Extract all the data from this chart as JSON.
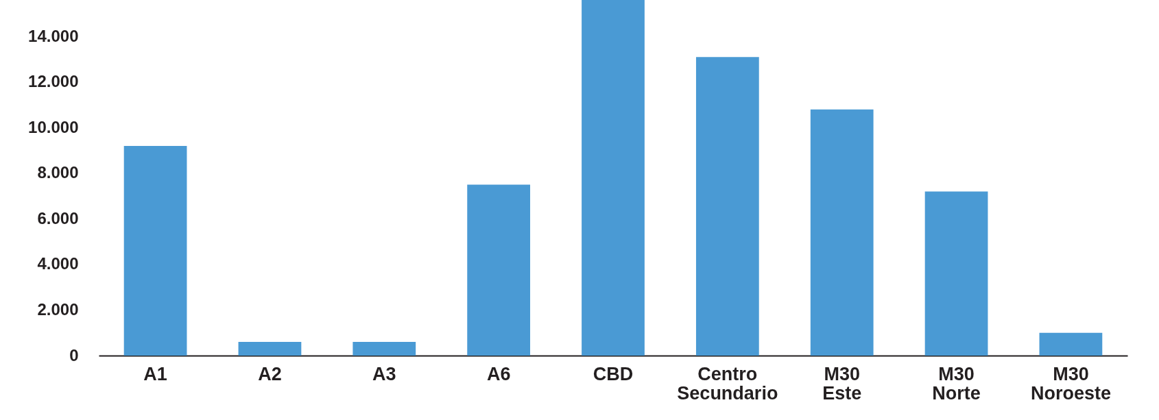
{
  "chart_data": {
    "type": "bar",
    "categories": [
      "A1",
      "A2",
      "A3",
      "A6",
      "CBD",
      "Centro Secundario",
      "M30 Este",
      "M30 Norte",
      "M30 Noroeste"
    ],
    "values": [
      9200,
      600,
      600,
      7500,
      15600,
      13100,
      10800,
      7200,
      1000
    ],
    "color": "#4a9ad4",
    "ylim": [
      0,
      15600
    ],
    "yticks": [
      0,
      {
        "value": 2000,
        "label": "2.000"
      },
      {
        "value": 4000,
        "label": "4.000"
      },
      {
        "value": 6000,
        "label": "6.000"
      },
      {
        "value": 8000,
        "label": "8.000"
      },
      {
        "value": 10000,
        "label": "10.000"
      },
      {
        "value": 12000,
        "label": "12.000"
      },
      {
        "value": 14000,
        "label": "14.000"
      }
    ],
    "grid": false
  }
}
